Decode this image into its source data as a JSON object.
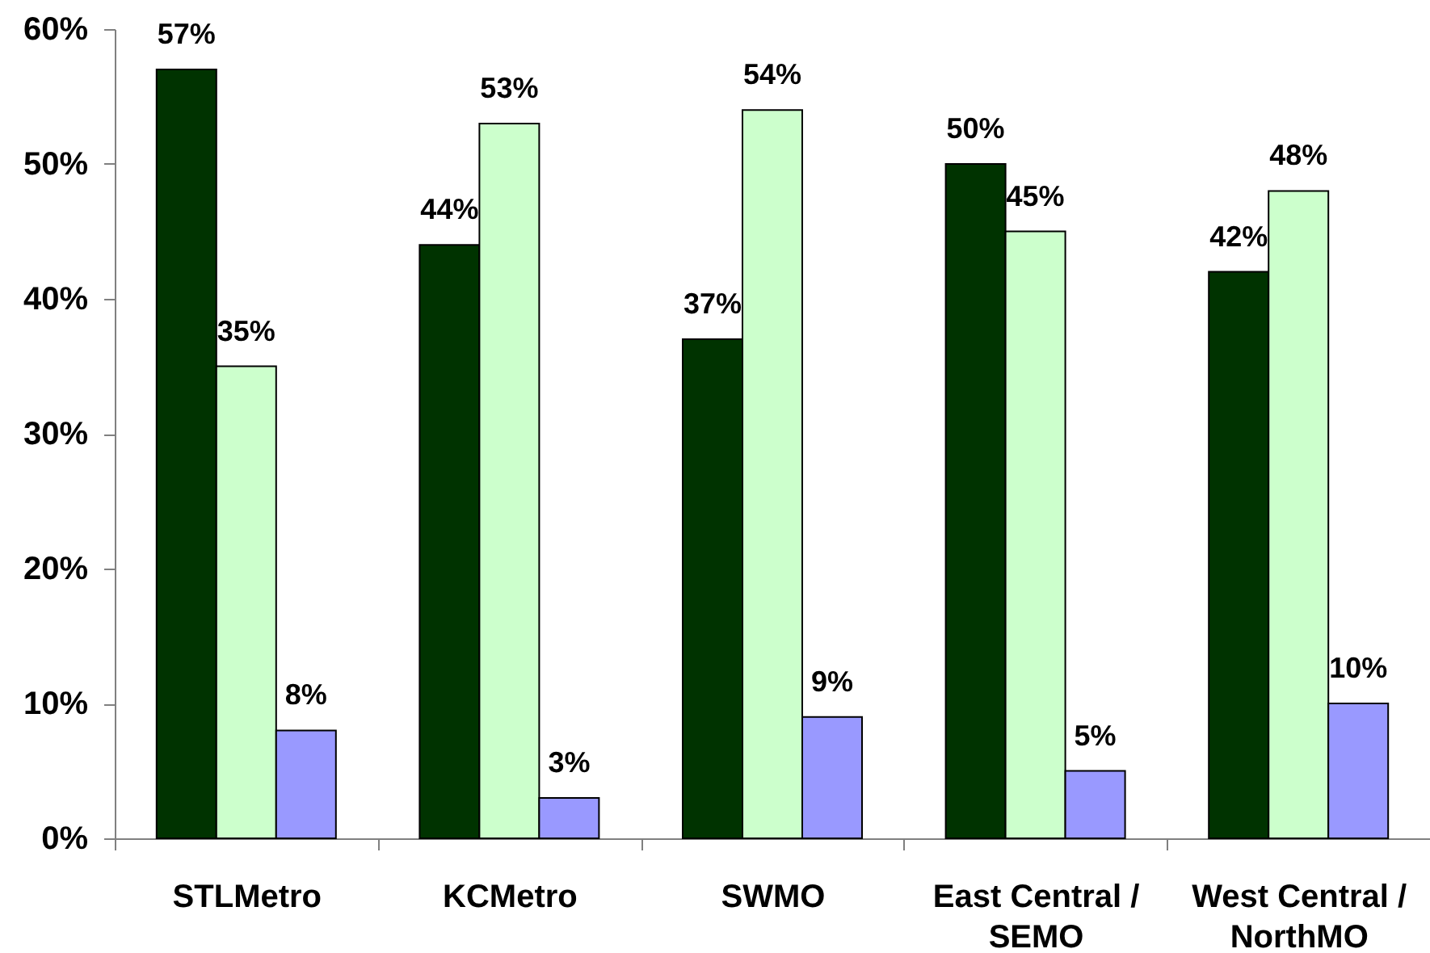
{
  "chart_data": {
    "type": "bar",
    "categories": [
      "STLMetro",
      "KCMetro",
      "SWMO",
      "East Central / SEMO",
      "West Central / NorthMO"
    ],
    "series": [
      {
        "color": "#003300",
        "values": [
          57,
          44,
          37,
          50,
          42
        ],
        "value_labels": [
          "57%",
          "44%",
          "37%",
          "50%",
          "42%"
        ]
      },
      {
        "color": "#ccffcc",
        "values": [
          35,
          53,
          54,
          45,
          48
        ],
        "value_labels": [
          "35%",
          "53%",
          "54%",
          "45%",
          "48%"
        ]
      },
      {
        "color": "#9999ff",
        "values": [
          8,
          3,
          9,
          5,
          10
        ],
        "value_labels": [
          "8%",
          "3%",
          "9%",
          "5%",
          "10%"
        ]
      }
    ],
    "ylim": [
      0,
      60
    ],
    "yticks": [
      {
        "value": 0,
        "label": "0%"
      },
      {
        "value": 10,
        "label": "10%"
      },
      {
        "value": 20,
        "label": "20%"
      },
      {
        "value": 30,
        "label": "30%"
      },
      {
        "value": 40,
        "label": "40%"
      },
      {
        "value": 50,
        "label": "50%"
      },
      {
        "value": 60,
        "label": "60%"
      }
    ]
  }
}
